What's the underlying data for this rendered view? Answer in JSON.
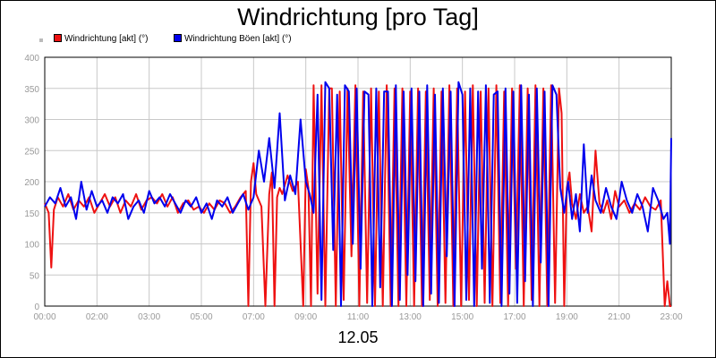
{
  "chart_data": {
    "type": "line",
    "title": "Windrichtung [pro Tag]",
    "xlabel": "12.05",
    "ylabel": "",
    "ylim": [
      0,
      400
    ],
    "yticks": [
      "0",
      "50",
      "100",
      "150",
      "200",
      "250",
      "300",
      "350",
      "400"
    ],
    "xlim": [
      0,
      24
    ],
    "xticks": [
      "00:00",
      "02:00",
      "03:00",
      "05:00",
      "07:00",
      "09:00",
      "11:00",
      "13:00",
      "15:00",
      "17:00",
      "19:00",
      "21:00",
      "23:00"
    ],
    "legend_position": "top-left",
    "grid": true,
    "series": [
      {
        "name": "Windrichtung [akt] (°)",
        "color": "#ee1111",
        "x": [
          0,
          0.15,
          0.25,
          0.35,
          0.5,
          0.7,
          0.9,
          1.1,
          1.3,
          1.5,
          1.7,
          1.9,
          2.1,
          2.3,
          2.5,
          2.7,
          2.9,
          3.1,
          3.3,
          3.5,
          3.7,
          3.9,
          4.1,
          4.3,
          4.5,
          4.7,
          4.9,
          5.1,
          5.3,
          5.5,
          5.7,
          5.9,
          6.1,
          6.3,
          6.5,
          6.7,
          6.9,
          7.1,
          7.3,
          7.5,
          7.7,
          7.8,
          7.9,
          8.0,
          8.1,
          8.3,
          8.45,
          8.6,
          8.7,
          8.8,
          8.9,
          9.0,
          9.1,
          9.3,
          9.5,
          9.7,
          9.9,
          10.0,
          10.1,
          10.2,
          10.3,
          10.45,
          10.6,
          10.75,
          10.9,
          11.0,
          11.15,
          11.3,
          11.45,
          11.6,
          11.75,
          11.9,
          12.05,
          12.2,
          12.35,
          12.5,
          12.65,
          12.8,
          12.95,
          13.1,
          13.25,
          13.4,
          13.55,
          13.7,
          13.85,
          14.0,
          14.15,
          14.3,
          14.45,
          14.6,
          14.75,
          14.9,
          15.05,
          15.2,
          15.35,
          15.5,
          15.65,
          15.8,
          15.95,
          16.1,
          16.25,
          16.4,
          16.55,
          16.7,
          16.85,
          17.0,
          17.15,
          17.3,
          17.45,
          17.6,
          17.75,
          17.9,
          18.05,
          18.2,
          18.35,
          18.5,
          18.65,
          18.8,
          18.95,
          19.1,
          19.25,
          19.4,
          19.55,
          19.7,
          19.8,
          19.9,
          20.0,
          20.1,
          20.2,
          20.35,
          20.5,
          20.65,
          20.8,
          20.95,
          21.1,
          21.25,
          21.4,
          21.55,
          21.7,
          21.85,
          22.0,
          22.2,
          22.4,
          22.6,
          22.8,
          23.0,
          23.2,
          23.4,
          23.6,
          23.75,
          23.85,
          23.95,
          24.0
        ],
        "values": [
          165,
          150,
          62,
          155,
          175,
          160,
          180,
          155,
          170,
          160,
          175,
          150,
          165,
          180,
          160,
          175,
          150,
          170,
          160,
          180,
          155,
          170,
          175,
          165,
          180,
          160,
          175,
          150,
          165,
          170,
          155,
          160,
          150,
          165,
          155,
          170,
          165,
          150,
          160,
          175,
          185,
          0,
          200,
          230,
          180,
          160,
          0,
          180,
          215,
          0,
          175,
          190,
          180,
          210,
          185,
          200,
          0,
          220,
          190,
          0,
          355,
          20,
          355,
          0,
          350,
          350,
          0,
          345,
          10,
          350,
          80,
          355,
          0,
          345,
          5,
          350,
          0,
          345,
          0,
          355,
          0,
          350,
          0,
          350,
          0,
          345,
          0,
          350,
          0,
          345,
          10,
          350,
          0,
          345,
          5,
          355,
          0,
          350,
          0,
          345,
          10,
          355,
          0,
          345,
          5,
          350,
          0,
          355,
          5,
          345,
          0,
          350,
          60,
          355,
          0,
          350,
          10,
          355,
          0,
          350,
          0,
          355,
          5,
          350,
          310,
          0,
          190,
          215,
          165,
          140,
          180,
          150,
          160,
          120,
          250,
          165,
          150,
          170,
          140,
          185,
          160,
          170,
          150,
          165,
          155,
          175,
          160,
          155,
          170,
          0,
          40,
          0,
          0
        ]
      },
      {
        "name": "Windrichtung Böen [akt] (°)",
        "color": "#0000ee",
        "x": [
          0,
          0.2,
          0.4,
          0.6,
          0.8,
          1.0,
          1.2,
          1.4,
          1.6,
          1.8,
          2.0,
          2.2,
          2.4,
          2.6,
          2.8,
          3.0,
          3.2,
          3.4,
          3.6,
          3.8,
          4.0,
          4.2,
          4.4,
          4.6,
          4.8,
          5.0,
          5.2,
          5.4,
          5.6,
          5.8,
          6.0,
          6.2,
          6.4,
          6.6,
          6.8,
          7.0,
          7.2,
          7.4,
          7.6,
          7.8,
          8.0,
          8.2,
          8.4,
          8.6,
          8.8,
          9.0,
          9.2,
          9.4,
          9.6,
          9.8,
          10.0,
          10.15,
          10.3,
          10.45,
          10.6,
          10.75,
          10.9,
          11.05,
          11.2,
          11.35,
          11.5,
          11.65,
          11.8,
          11.95,
          12.1,
          12.25,
          12.4,
          12.55,
          12.7,
          12.85,
          13.0,
          13.15,
          13.3,
          13.45,
          13.6,
          13.75,
          13.9,
          14.05,
          14.2,
          14.35,
          14.5,
          14.65,
          14.8,
          14.95,
          15.1,
          15.25,
          15.4,
          15.55,
          15.7,
          15.85,
          16.0,
          16.15,
          16.3,
          16.45,
          16.6,
          16.75,
          16.9,
          17.05,
          17.2,
          17.35,
          17.5,
          17.65,
          17.8,
          17.95,
          18.1,
          18.25,
          18.4,
          18.55,
          18.7,
          18.85,
          19.0,
          19.15,
          19.3,
          19.45,
          19.6,
          19.75,
          19.9,
          20.05,
          20.2,
          20.35,
          20.5,
          20.65,
          20.8,
          20.95,
          21.1,
          21.3,
          21.5,
          21.7,
          21.9,
          22.1,
          22.3,
          22.5,
          22.7,
          22.9,
          23.1,
          23.3,
          23.5,
          23.7,
          23.85,
          23.95,
          24.0
        ],
        "values": [
          160,
          175,
          165,
          190,
          160,
          175,
          140,
          200,
          155,
          185,
          160,
          170,
          150,
          175,
          165,
          180,
          140,
          160,
          170,
          150,
          185,
          165,
          175,
          160,
          180,
          165,
          150,
          170,
          160,
          175,
          150,
          165,
          140,
          170,
          160,
          175,
          150,
          165,
          180,
          155,
          175,
          250,
          200,
          270,
          190,
          310,
          170,
          210,
          180,
          300,
          200,
          180,
          150,
          340,
          10,
          360,
          350,
          90,
          340,
          0,
          355,
          345,
          100,
          350,
          60,
          345,
          340,
          0,
          350,
          30,
          345,
          345,
          0,
          355,
          10,
          345,
          50,
          350,
          40,
          345,
          0,
          355,
          20,
          340,
          5,
          350,
          80,
          345,
          0,
          360,
          340,
          10,
          350,
          0,
          345,
          60,
          355,
          5,
          340,
          345,
          0,
          350,
          20,
          345,
          5,
          355,
          40,
          340,
          0,
          350,
          70,
          345,
          0,
          355,
          340,
          190,
          150,
          200,
          140,
          180,
          120,
          260,
          150,
          210,
          170,
          150,
          190,
          160,
          140,
          200,
          170,
          150,
          180,
          160,
          120,
          190,
          170,
          140,
          150,
          100,
          270
        ]
      }
    ]
  }
}
